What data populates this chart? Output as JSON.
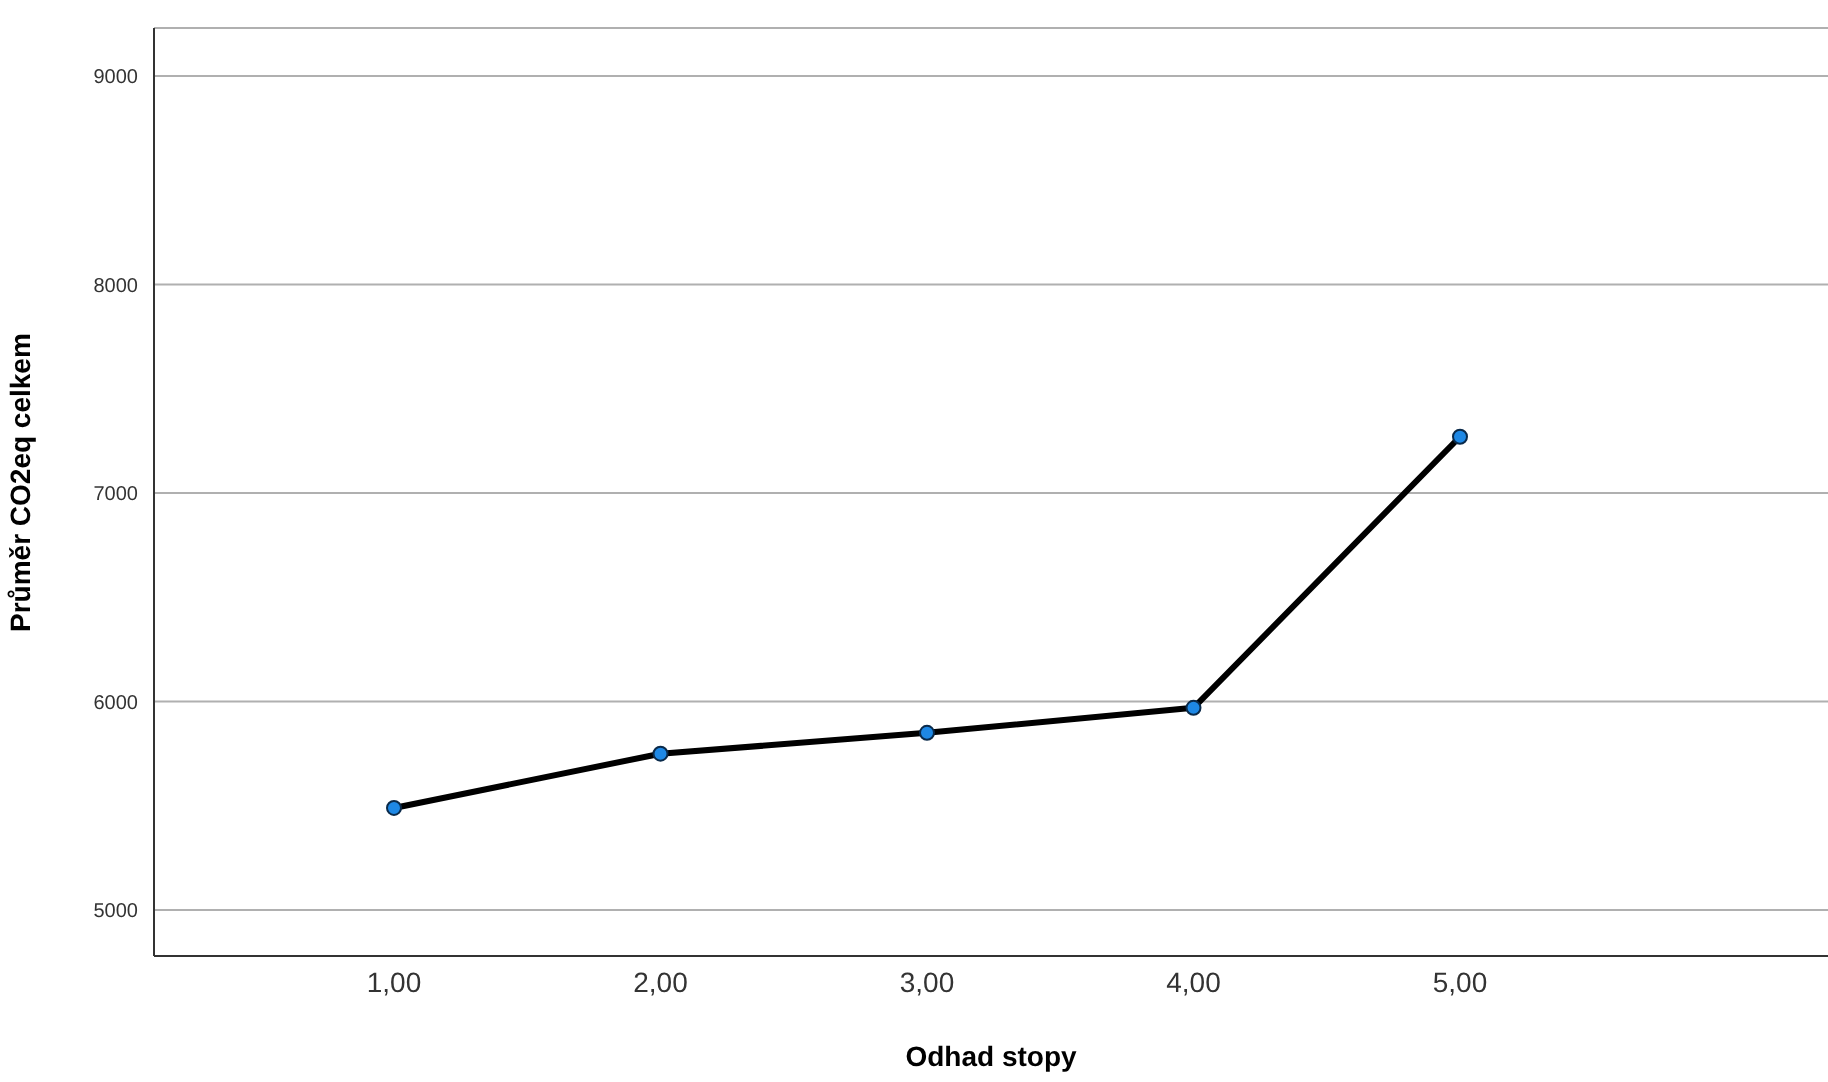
{
  "chart_data": {
    "type": "line",
    "xlabel": "Odhad stopy",
    "ylabel": "Průměr CO2eq celkem",
    "categories": [
      "1,00",
      "2,00",
      "3,00",
      "4,00",
      "5,00"
    ],
    "series": [
      {
        "color": "#000000",
        "values": [
          5490,
          5750,
          5850,
          5970,
          7270
        ]
      }
    ],
    "ylim": [
      4780,
      9230
    ],
    "yticks": [
      5000,
      6000,
      7000,
      8000,
      9000
    ],
    "grid": "y",
    "marker": "circle",
    "line_style": "solid"
  }
}
